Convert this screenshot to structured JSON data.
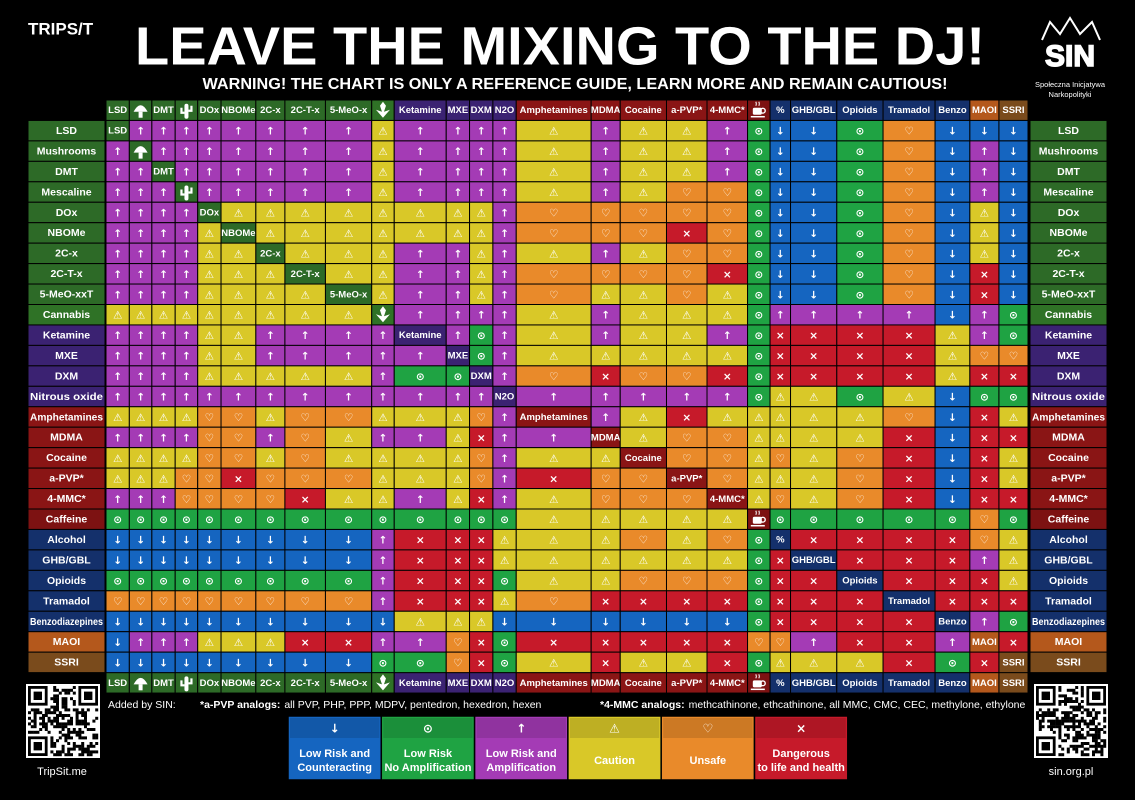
{
  "header": {
    "logo": "TRIPS/T",
    "title": "LEAVE THE MIXING TO THE DJ!",
    "subtitle": "WARNING! THE CHART IS ONLY A REFERENCE GUIDE, LEARN MORE AND REMAIN CAUTIOUS!",
    "org_logo": "SIN",
    "org_name": [
      "Społeczna Inicjatywa",
      "Narkopolityki"
    ]
  },
  "drugs": [
    {
      "name": "LSD",
      "label": "LSD",
      "color": "#2d6a27"
    },
    {
      "name": "Mushrooms",
      "label": null,
      "color": "#2d6a27"
    },
    {
      "name": "DMT",
      "label": "DMT",
      "color": "#2d6a27"
    },
    {
      "name": "Mescaline",
      "label": null,
      "color": "#2d6a27"
    },
    {
      "name": "DOx",
      "label": "DOx",
      "color": "#2d6a27"
    },
    {
      "name": "NBOMe",
      "label": "NBOMe",
      "color": "#2d6a27"
    },
    {
      "name": "2C-x",
      "label": "2C-x",
      "color": "#2d6a27"
    },
    {
      "name": "2C-T-x",
      "label": "2C-T-x",
      "color": "#2d6a27"
    },
    {
      "name": "5-MeO-xxT",
      "label": "5-MeO-x",
      "color": "#2d6a27"
    },
    {
      "name": "Cannabis",
      "label": null,
      "color": "#2f7226"
    },
    {
      "name": "Ketamine",
      "label": "Ketamine",
      "color": "#3b2272"
    },
    {
      "name": "MXE",
      "label": "MXE",
      "color": "#3b2272"
    },
    {
      "name": "DXM",
      "label": "DXM",
      "color": "#3b2272"
    },
    {
      "name": "Nitrous oxide",
      "label": "N2O",
      "color": "#3b2272"
    },
    {
      "name": "Amphetamines",
      "label": "Amphetamines",
      "color": "#8a1515"
    },
    {
      "name": "MDMA",
      "label": "MDMA",
      "color": "#8a1515"
    },
    {
      "name": "Cocaine",
      "label": "Cocaine",
      "color": "#8a1515"
    },
    {
      "name": "a-PVP*",
      "label": "a-PVP*",
      "color": "#8a1515"
    },
    {
      "name": "4-MMC*",
      "label": "4-MMC*",
      "color": "#8a1515"
    },
    {
      "name": "Caffeine",
      "label": null,
      "color": "#7d1212"
    },
    {
      "name": "Alcohol",
      "label": "%",
      "color": "#14306b"
    },
    {
      "name": "GHB/GBL",
      "label": "GHB/GBL",
      "color": "#14306b"
    },
    {
      "name": "Opioids",
      "label": "Opioids",
      "color": "#14306b"
    },
    {
      "name": "Tramadol",
      "label": "Tramadol",
      "color": "#14306b"
    },
    {
      "name": "Benzodiazepines",
      "label": "Benzo",
      "color": "#14306b"
    },
    {
      "name": "MAOI",
      "label": "MAOI",
      "color": "#b4581c"
    },
    {
      "name": "SSRI",
      "label": "SSRI",
      "color": "#7a4b1c"
    }
  ],
  "matrix": [
    [
      null,
      "↑",
      "↑",
      "↑",
      "↑",
      "↑",
      "↑",
      "↑",
      "↑",
      "⚠",
      "↑",
      "↑",
      "↑",
      "↑",
      "⚠",
      "↑",
      "⚠",
      "⚠",
      "↑",
      "⊙",
      "↓",
      "↓",
      "⊙",
      "♡",
      "↓",
      "↓",
      "↓"
    ],
    [
      "↑",
      null,
      "↑",
      "↑",
      "↑",
      "↑",
      "↑",
      "↑",
      "↑",
      "⚠",
      "↑",
      "↑",
      "↑",
      "↑",
      "⚠",
      "↑",
      "⚠",
      "⚠",
      "↑",
      "⊙",
      "↓",
      "↓",
      "⊙",
      "♡",
      "↓",
      "↑",
      "↓"
    ],
    [
      "↑",
      "↑",
      null,
      "↑",
      "↑",
      "↑",
      "↑",
      "↑",
      "↑",
      "⚠",
      "↑",
      "↑",
      "↑",
      "↑",
      "⚠",
      "↑",
      "⚠",
      "⚠",
      "↑",
      "⊙",
      "↓",
      "↓",
      "⊙",
      "♡",
      "↓",
      "↑",
      "↓"
    ],
    [
      "↑",
      "↑",
      "↑",
      null,
      "↑",
      "↑",
      "↑",
      "↑",
      "↑",
      "⚠",
      "↑",
      "↑",
      "↑",
      "↑",
      "⚠",
      "↑",
      "⚠",
      "♡",
      "♡",
      "⊙",
      "↓",
      "↓",
      "⊙",
      "♡",
      "↓",
      "↑",
      "↓"
    ],
    [
      "↑",
      "↑",
      "↑",
      "↑",
      null,
      "⚠",
      "⚠",
      "⚠",
      "⚠",
      "⚠",
      "⚠",
      "⚠",
      "⚠",
      "↑",
      "♡",
      "♡",
      "♡",
      "♡",
      "♡",
      "⊙",
      "↓",
      "↓",
      "⊙",
      "♡",
      "↓",
      "⚠",
      "↓"
    ],
    [
      "↑",
      "↑",
      "↑",
      "↑",
      "⚠",
      null,
      "⚠",
      "⚠",
      "⚠",
      "⚠",
      "⚠",
      "⚠",
      "⚠",
      "↑",
      "♡",
      "♡",
      "♡",
      "×",
      "♡",
      "⊙",
      "↓",
      "↓",
      "⊙",
      "♡",
      "↓",
      "⚠",
      "↓"
    ],
    [
      "↑",
      "↑",
      "↑",
      "↑",
      "⚠",
      "⚠",
      null,
      "⚠",
      "⚠",
      "⚠",
      "↑",
      "↑",
      "⚠",
      "↑",
      "⚠",
      "↑",
      "⚠",
      "♡",
      "♡",
      "⊙",
      "↓",
      "↓",
      "⊙",
      "♡",
      "↓",
      "⚠",
      "↓"
    ],
    [
      "↑",
      "↑",
      "↑",
      "↑",
      "⚠",
      "⚠",
      "⚠",
      null,
      "⚠",
      "⚠",
      "↑",
      "↑",
      "⚠",
      "↑",
      "♡",
      "♡",
      "♡",
      "♡",
      "×",
      "⊙",
      "↓",
      "↓",
      "⊙",
      "♡",
      "↓",
      "×",
      "↓"
    ],
    [
      "↑",
      "↑",
      "↑",
      "↑",
      "⚠",
      "⚠",
      "⚠",
      "⚠",
      null,
      "⚠",
      "↑",
      "↑",
      "⚠",
      "↑",
      "♡",
      "⚠",
      "⚠",
      "♡",
      "⚠",
      "⊙",
      "↓",
      "↓",
      "⊙",
      "♡",
      "↓",
      "×",
      "↓"
    ],
    [
      "⚠",
      "⚠",
      "⚠",
      "⚠",
      "⚠",
      "⚠",
      "⚠",
      "⚠",
      "⚠",
      null,
      "↑",
      "↑",
      "↑",
      "↑",
      "⚠",
      "↑",
      "⚠",
      "⚠",
      "⚠",
      "⊙",
      "↑",
      "↑",
      "↑",
      "↑",
      "↓",
      "↑",
      "⊙"
    ],
    [
      "↑",
      "↑",
      "↑",
      "↑",
      "⚠",
      "⚠",
      "↑",
      "↑",
      "↑",
      "↑",
      null,
      "↑",
      "⊙",
      "↑",
      "⚠",
      "↑",
      "⚠",
      "⚠",
      "↑",
      "⊙",
      "×",
      "×",
      "×",
      "×",
      "⚠",
      "↑",
      "⊙"
    ],
    [
      "↑",
      "↑",
      "↑",
      "↑",
      "⚠",
      "⚠",
      "↑",
      "↑",
      "↑",
      "↑",
      "↑",
      null,
      "⊙",
      "↑",
      "⚠",
      "⚠",
      "⚠",
      "⚠",
      "⚠",
      "⊙",
      "×",
      "×",
      "×",
      "×",
      "⚠",
      "♡",
      "♡"
    ],
    [
      "↑",
      "↑",
      "↑",
      "↑",
      "⚠",
      "⚠",
      "⚠",
      "⚠",
      "⚠",
      "↑",
      "⊙",
      "⊙",
      null,
      "↑",
      "♡",
      "×",
      "♡",
      "♡",
      "×",
      "⊙",
      "×",
      "×",
      "×",
      "×",
      "⚠",
      "×",
      "×"
    ],
    [
      "↑",
      "↑",
      "↑",
      "↑",
      "↑",
      "↑",
      "↑",
      "↑",
      "↑",
      "↑",
      "↑",
      "↑",
      "↑",
      null,
      "↑",
      "↑",
      "↑",
      "↑",
      "↑",
      "⊙",
      "⚠",
      "⚠",
      "⊙",
      "⚠",
      "↓",
      "⊙",
      "⊙"
    ],
    [
      "⚠",
      "⚠",
      "⚠",
      "⚠",
      "♡",
      "♡",
      "⚠",
      "♡",
      "♡",
      "⚠",
      "⚠",
      "⚠",
      "♡",
      "↑",
      null,
      "↑",
      "⚠",
      "×",
      "⚠",
      "⚠",
      "⚠",
      "⚠",
      "⚠",
      "♡",
      "↓",
      "×",
      "⚠"
    ],
    [
      "↑",
      "↑",
      "↑",
      "↑",
      "♡",
      "♡",
      "↑",
      "♡",
      "⚠",
      "↑",
      "↑",
      "⚠",
      "×",
      "↑",
      "↑",
      null,
      "⚠",
      "♡",
      "♡",
      "⚠",
      "⚠",
      "⚠",
      "⚠",
      "×",
      "↓",
      "×",
      "×"
    ],
    [
      "⚠",
      "⚠",
      "⚠",
      "⚠",
      "♡",
      "♡",
      "⚠",
      "♡",
      "⚠",
      "⚠",
      "⚠",
      "⚠",
      "♡",
      "↑",
      "⚠",
      "⚠",
      null,
      "♡",
      "♡",
      "⚠",
      "♡",
      "⚠",
      "♡",
      "×",
      "↓",
      "×",
      "⚠"
    ],
    [
      "⚠",
      "⚠",
      "⚠",
      "♡",
      "♡",
      "×",
      "♡",
      "♡",
      "♡",
      "⚠",
      "⚠",
      "⚠",
      "♡",
      "↑",
      "×",
      "♡",
      "♡",
      null,
      "♡",
      "⚠",
      "⚠",
      "⚠",
      "♡",
      "×",
      "↓",
      "×",
      "⚠"
    ],
    [
      "↑",
      "↑",
      "↑",
      "♡",
      "♡",
      "♡",
      "♡",
      "×",
      "⚠",
      "⚠",
      "↑",
      "⚠",
      "×",
      "↑",
      "⚠",
      "♡",
      "♡",
      "♡",
      null,
      "⚠",
      "♡",
      "⚠",
      "♡",
      "×",
      "↓",
      "×",
      "×"
    ],
    [
      "⊙",
      "⊙",
      "⊙",
      "⊙",
      "⊙",
      "⊙",
      "⊙",
      "⊙",
      "⊙",
      "⊙",
      "⊙",
      "⊙",
      "⊙",
      "⊙",
      "⚠",
      "⚠",
      "⚠",
      "⚠",
      "⚠",
      null,
      "⊙",
      "⊙",
      "⊙",
      "⊙",
      "⊙",
      "♡",
      "⊙"
    ],
    [
      "↓",
      "↓",
      "↓",
      "↓",
      "↓",
      "↓",
      "↓",
      "↓",
      "↓",
      "↑",
      "×",
      "×",
      "×",
      "⚠",
      "⚠",
      "⚠",
      "♡",
      "⚠",
      "♡",
      "⊙",
      null,
      "×",
      "×",
      "×",
      "×",
      "♡",
      "⚠"
    ],
    [
      "↓",
      "↓",
      "↓",
      "↓",
      "↓",
      "↓",
      "↓",
      "↓",
      "↓",
      "↑",
      "×",
      "×",
      "×",
      "⚠",
      "⚠",
      "⚠",
      "⚠",
      "⚠",
      "⚠",
      "⊙",
      "×",
      null,
      "×",
      "×",
      "×",
      "↑",
      "⚠"
    ],
    [
      "⊙",
      "⊙",
      "⊙",
      "⊙",
      "⊙",
      "⊙",
      "⊙",
      "⊙",
      "⊙",
      "↑",
      "×",
      "×",
      "×",
      "⊙",
      "⚠",
      "⚠",
      "♡",
      "♡",
      "♡",
      "⊙",
      "×",
      "×",
      null,
      "×",
      "×",
      "×",
      "⚠"
    ],
    [
      "♡",
      "♡",
      "♡",
      "♡",
      "♡",
      "♡",
      "♡",
      "♡",
      "♡",
      "↑",
      "×",
      "×",
      "×",
      "⚠",
      "♡",
      "×",
      "×",
      "×",
      "×",
      "⊙",
      "×",
      "×",
      "×",
      null,
      "×",
      "×",
      "×"
    ],
    [
      "↓",
      "↓",
      "↓",
      "↓",
      "↓",
      "↓",
      "↓",
      "↓",
      "↓",
      "↓",
      "⚠",
      "⚠",
      "⚠",
      "↓",
      "↓",
      "↓",
      "↓",
      "↓",
      "↓",
      "⊙",
      "×",
      "×",
      "×",
      "×",
      null,
      "↑",
      "⊙"
    ],
    [
      "↓",
      "↑",
      "↑",
      "↑",
      "⚠",
      "⚠",
      "⚠",
      "×",
      "×",
      "↑",
      "↑",
      "♡",
      "×",
      "⊙",
      "×",
      "×",
      "×",
      "×",
      "×",
      "♡",
      "♡",
      "↑",
      "×",
      "×",
      "↑",
      null,
      "×"
    ],
    [
      "↓",
      "↓",
      "↓",
      "↓",
      "↓",
      "↓",
      "↓",
      "↓",
      "↓",
      "⊙",
      "⊙",
      "♡",
      "×",
      "⊙",
      "⚠",
      "×",
      "⚠",
      "⚠",
      "×",
      "⊙",
      "⚠",
      "⚠",
      "⚠",
      "×",
      "⊙",
      "×",
      null
    ]
  ],
  "notes": {
    "added_by": "Added by SIN:",
    "apvp": {
      "heading": "*a-PVP analogs:",
      "text": "all PVP, PHP, PPP, MDPV, pentedron, hexedron, hexen"
    },
    "mmc": {
      "heading": "*4-MMC analogs:",
      "text": "methcathinone, ethcathinone, all MMC, CMC, CEC, methylone, ethylone"
    }
  },
  "legend": [
    {
      "symbol": "↓",
      "label": [
        "Low Risk and",
        "Counteracting"
      ],
      "color": "#1565c0"
    },
    {
      "symbol": "⊙",
      "label": [
        "Low Risk",
        "No Amplification"
      ],
      "color": "#1fa343"
    },
    {
      "symbol": "↑",
      "label": [
        "Low Risk and",
        "Amplification"
      ],
      "color": "#a43bb5"
    },
    {
      "symbol": "⚠",
      "label": [
        "Caution"
      ],
      "color": "#d9c828"
    },
    {
      "symbol": "♡",
      "label": [
        "Unsafe"
      ],
      "color": "#e98a2a"
    },
    {
      "symbol": "×",
      "label": [
        "Dangerous",
        "to life and health"
      ],
      "color": "#c61a2a"
    }
  ],
  "footer": {
    "left": "TripSit.me",
    "right": "sin.org.pl"
  }
}
